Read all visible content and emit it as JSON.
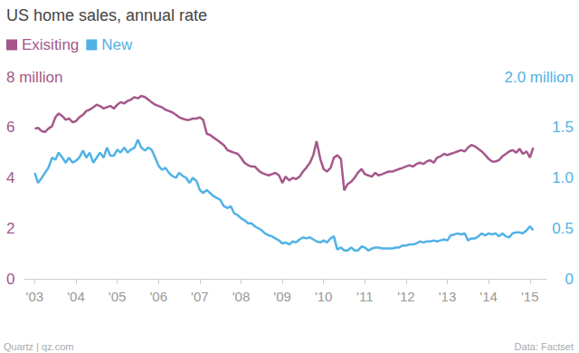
{
  "chart_data": {
    "type": "line",
    "title": "US home sales, annual rate",
    "credit": "Quartz | qz.com",
    "source": "Data: Factset",
    "legend": "top-left",
    "grid": false,
    "x": [
      2003.0,
      2003.08,
      2003.17,
      2003.25,
      2003.33,
      2003.42,
      2003.5,
      2003.58,
      2003.67,
      2003.75,
      2003.83,
      2003.92,
      2004.0,
      2004.08,
      2004.17,
      2004.25,
      2004.33,
      2004.42,
      2004.5,
      2004.58,
      2004.67,
      2004.75,
      2004.83,
      2004.92,
      2005.0,
      2005.08,
      2005.17,
      2005.25,
      2005.33,
      2005.42,
      2005.5,
      2005.58,
      2005.67,
      2005.75,
      2005.83,
      2005.92,
      2006.0,
      2006.08,
      2006.17,
      2006.25,
      2006.33,
      2006.42,
      2006.5,
      2006.58,
      2006.67,
      2006.75,
      2006.83,
      2006.92,
      2007.0,
      2007.08,
      2007.17,
      2007.25,
      2007.33,
      2007.42,
      2007.5,
      2007.58,
      2007.67,
      2007.75,
      2007.83,
      2007.92,
      2008.0,
      2008.08,
      2008.17,
      2008.25,
      2008.33,
      2008.42,
      2008.5,
      2008.58,
      2008.67,
      2008.75,
      2008.83,
      2008.92,
      2009.0,
      2009.08,
      2009.17,
      2009.25,
      2009.33,
      2009.42,
      2009.5,
      2009.58,
      2009.67,
      2009.75,
      2009.83,
      2009.92,
      2010.0,
      2010.08,
      2010.17,
      2010.25,
      2010.33,
      2010.42,
      2010.5,
      2010.58,
      2010.67,
      2010.75,
      2010.83,
      2010.92,
      2011.0,
      2011.08,
      2011.17,
      2011.25,
      2011.33,
      2011.42,
      2011.5,
      2011.58,
      2011.67,
      2011.75,
      2011.83,
      2011.92,
      2012.0,
      2012.08,
      2012.17,
      2012.25,
      2012.33,
      2012.42,
      2012.5,
      2012.58,
      2012.67,
      2012.75,
      2012.83,
      2012.92,
      2013.0,
      2013.08,
      2013.17,
      2013.25,
      2013.33,
      2013.42,
      2013.5,
      2013.58,
      2013.67,
      2013.75,
      2013.83,
      2013.92,
      2014.0,
      2014.08,
      2014.17,
      2014.25,
      2014.33,
      2014.42,
      2014.5,
      2014.58,
      2014.67,
      2014.75,
      2014.83,
      2014.92,
      2015.0,
      2015.08
    ],
    "xlim": [
      2002.75,
      2015.4
    ],
    "xticks": [
      {
        "value": 2003,
        "label": "'03"
      },
      {
        "value": 2004,
        "label": "'04"
      },
      {
        "value": 2005,
        "label": "'05"
      },
      {
        "value": 2006,
        "label": "'06"
      },
      {
        "value": 2007,
        "label": "'07"
      },
      {
        "value": 2008,
        "label": "'08"
      },
      {
        "value": 2009,
        "label": "'09"
      },
      {
        "value": 2010,
        "label": "'10"
      },
      {
        "value": 2011,
        "label": "'11"
      },
      {
        "value": 2012,
        "label": "'12"
      },
      {
        "value": 2013,
        "label": "'13"
      },
      {
        "value": 2014,
        "label": "'14"
      },
      {
        "value": 2015,
        "label": "'15"
      }
    ],
    "ylim": [
      0,
      8
    ],
    "yticks": [
      0,
      2,
      4,
      6,
      {
        "value": 8,
        "label": "8 million"
      }
    ],
    "y2lim": [
      0,
      2
    ],
    "y2ticks": [
      0,
      0.5,
      {
        "value": 1,
        "label": "1.0"
      },
      1.5,
      {
        "value": 2,
        "label": "2.0 million"
      }
    ],
    "series": [
      {
        "name": "Exisiting",
        "color": "#a5578a",
        "axis": "y",
        "values": [
          5.95,
          5.98,
          5.85,
          5.82,
          5.95,
          6.05,
          6.4,
          6.55,
          6.45,
          6.3,
          6.35,
          6.2,
          6.25,
          6.4,
          6.5,
          6.65,
          6.7,
          6.8,
          6.9,
          6.85,
          6.75,
          6.8,
          6.85,
          6.75,
          6.9,
          7.0,
          6.95,
          7.05,
          7.1,
          7.2,
          7.15,
          7.25,
          7.2,
          7.1,
          7.0,
          6.9,
          6.85,
          6.8,
          6.7,
          6.65,
          6.6,
          6.5,
          6.4,
          6.35,
          6.3,
          6.3,
          6.35,
          6.35,
          6.4,
          6.3,
          5.75,
          5.7,
          5.6,
          5.5,
          5.4,
          5.3,
          5.1,
          5.05,
          5.0,
          4.95,
          4.8,
          4.6,
          4.5,
          4.45,
          4.45,
          4.3,
          4.2,
          4.15,
          4.1,
          4.15,
          4.2,
          4.1,
          3.8,
          4.05,
          3.9,
          4.0,
          3.95,
          4.05,
          4.25,
          4.4,
          4.6,
          4.9,
          5.45,
          4.75,
          4.35,
          4.25,
          4.4,
          4.8,
          4.9,
          4.75,
          3.5,
          3.75,
          3.85,
          4.0,
          4.2,
          4.35,
          4.15,
          4.1,
          4.05,
          4.2,
          4.1,
          4.15,
          4.2,
          4.25,
          4.25,
          4.3,
          4.35,
          4.4,
          4.45,
          4.5,
          4.45,
          4.55,
          4.6,
          4.55,
          4.65,
          4.7,
          4.6,
          4.8,
          4.85,
          4.95,
          4.9,
          4.95,
          5.0,
          5.05,
          5.1,
          5.05,
          5.2,
          5.3,
          5.25,
          5.15,
          5.05,
          4.9,
          4.75,
          4.65,
          4.65,
          4.7,
          4.85,
          4.95,
          5.05,
          5.1,
          5.0,
          5.15,
          4.95,
          5.05,
          4.8,
          5.2
        ]
      },
      {
        "name": "New",
        "color": "#51b2e5",
        "axis": "y2",
        "values": [
          1.05,
          0.95,
          1.0,
          1.05,
          1.1,
          1.2,
          1.18,
          1.25,
          1.2,
          1.15,
          1.2,
          1.15,
          1.17,
          1.2,
          1.27,
          1.2,
          1.25,
          1.15,
          1.2,
          1.25,
          1.2,
          1.3,
          1.22,
          1.22,
          1.28,
          1.25,
          1.3,
          1.25,
          1.28,
          1.3,
          1.38,
          1.3,
          1.27,
          1.3,
          1.28,
          1.2,
          1.12,
          1.08,
          1.1,
          1.05,
          1.02,
          1.0,
          1.05,
          1.02,
          1.0,
          0.95,
          1.0,
          0.97,
          0.88,
          0.85,
          0.88,
          0.85,
          0.82,
          0.8,
          0.78,
          0.72,
          0.7,
          0.72,
          0.65,
          0.63,
          0.6,
          0.58,
          0.55,
          0.55,
          0.52,
          0.5,
          0.48,
          0.45,
          0.43,
          0.42,
          0.4,
          0.38,
          0.35,
          0.36,
          0.34,
          0.37,
          0.36,
          0.39,
          0.41,
          0.4,
          0.41,
          0.39,
          0.37,
          0.36,
          0.38,
          0.36,
          0.4,
          0.42,
          0.29,
          0.31,
          0.28,
          0.28,
          0.31,
          0.28,
          0.28,
          0.32,
          0.31,
          0.28,
          0.3,
          0.31,
          0.31,
          0.3,
          0.3,
          0.3,
          0.3,
          0.31,
          0.31,
          0.33,
          0.33,
          0.34,
          0.34,
          0.35,
          0.37,
          0.36,
          0.37,
          0.37,
          0.38,
          0.37,
          0.38,
          0.39,
          0.38,
          0.43,
          0.44,
          0.45,
          0.44,
          0.45,
          0.38,
          0.4,
          0.4,
          0.42,
          0.45,
          0.43,
          0.45,
          0.44,
          0.45,
          0.42,
          0.45,
          0.42,
          0.41,
          0.45,
          0.46,
          0.46,
          0.45,
          0.48,
          0.52,
          0.48
        ]
      }
    ]
  }
}
